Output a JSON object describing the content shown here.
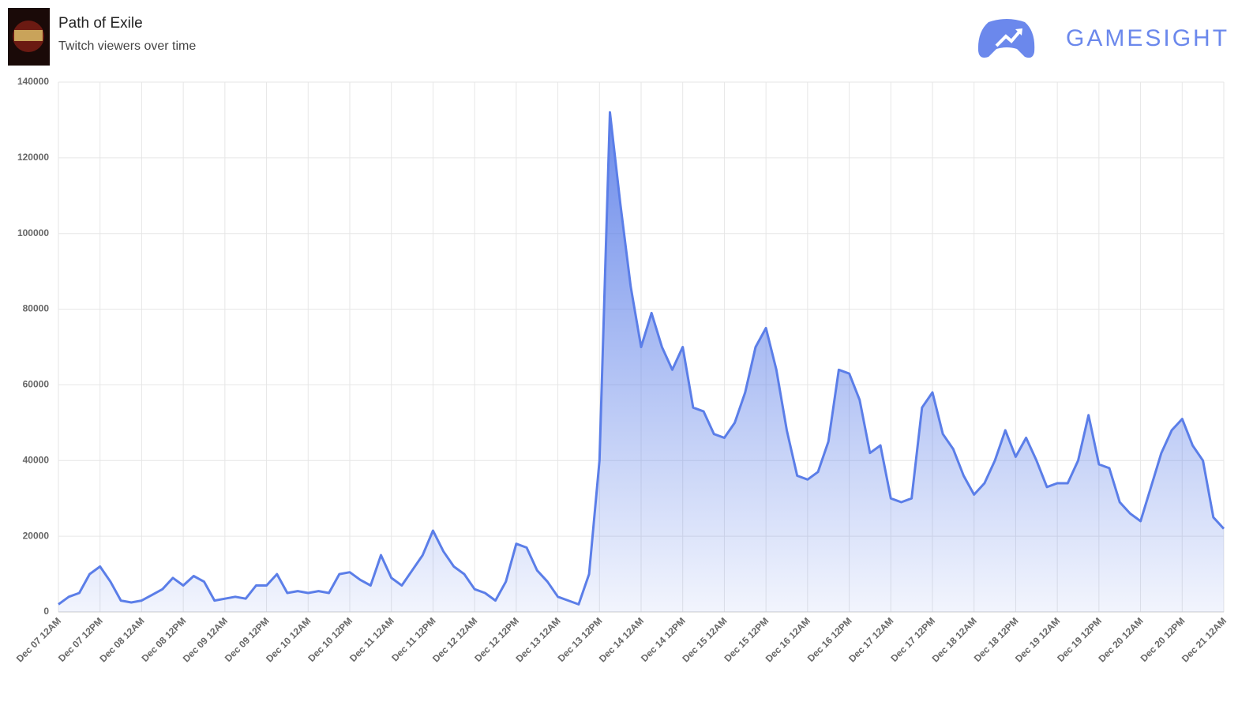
{
  "brand": "GAMESIGHT",
  "chart_data": {
    "type": "area",
    "title": "Path of Exile",
    "subtitle": "Twitch viewers over time",
    "categories": [
      "Dec 07 12AM",
      null,
      null,
      null,
      "Dec 07 12PM",
      null,
      null,
      null,
      "Dec 08 12AM",
      null,
      null,
      null,
      "Dec 08 12PM",
      null,
      null,
      null,
      "Dec 09 12AM",
      null,
      null,
      null,
      "Dec 09 12PM",
      null,
      null,
      null,
      "Dec 10 12AM",
      null,
      null,
      null,
      "Dec 10 12PM",
      null,
      null,
      null,
      "Dec 11 12AM",
      null,
      null,
      null,
      "Dec 11 12PM",
      null,
      null,
      null,
      "Dec 12 12AM",
      null,
      null,
      null,
      "Dec 12 12PM",
      null,
      null,
      null,
      "Dec 13 12AM",
      null,
      null,
      null,
      "Dec 13 12PM",
      null,
      null,
      null,
      "Dec 14 12AM",
      null,
      null,
      null,
      "Dec 14 12PM",
      null,
      null,
      null,
      "Dec 15 12AM",
      null,
      null,
      null,
      "Dec 15 12PM",
      null,
      null,
      null,
      "Dec 16 12AM",
      null,
      null,
      null,
      "Dec 16 12PM",
      null,
      null,
      null,
      "Dec 17 12AM",
      null,
      null,
      null,
      "Dec 17 12PM",
      null,
      null,
      null,
      "Dec 18 12AM",
      null,
      null,
      null,
      "Dec 18 12PM",
      null,
      null,
      null,
      "Dec 19 12AM",
      null,
      null,
      null,
      "Dec 19 12PM",
      null,
      null,
      null,
      "Dec 20 12AM",
      null,
      null,
      null,
      "Dec 20 12PM",
      null,
      null,
      null,
      "Dec 21 12AM"
    ],
    "values": [
      2000,
      4000,
      5000,
      10000,
      12000,
      8000,
      3000,
      2500,
      3000,
      4500,
      6000,
      9000,
      7000,
      9500,
      8000,
      3000,
      3500,
      4000,
      3500,
      7000,
      7000,
      10000,
      5000,
      5500,
      5000,
      5500,
      5000,
      10000,
      10500,
      8500,
      7000,
      15000,
      9000,
      7000,
      11000,
      15000,
      21500,
      16000,
      12000,
      10000,
      6000,
      5000,
      3000,
      8000,
      18000,
      17000,
      11000,
      8000,
      4000,
      3000,
      2000,
      10000,
      40000,
      132000,
      108000,
      86000,
      70000,
      79000,
      70000,
      64000,
      70000,
      54000,
      53000,
      47000,
      46000,
      50000,
      58000,
      70000,
      75000,
      64000,
      48000,
      36000,
      35000,
      37000,
      45000,
      64000,
      63000,
      56000,
      42000,
      44000,
      30000,
      29000,
      30000,
      54000,
      58000,
      47000,
      43000,
      36000,
      31000,
      34000,
      40000,
      48000,
      41000,
      46000,
      40000,
      33000,
      34000,
      34000,
      40000,
      52000,
      39000,
      38000,
      29000,
      26000,
      24000,
      33000,
      42000,
      48000,
      51000,
      44000,
      40000,
      25000,
      22000
    ],
    "color": "#5b7ee8",
    "ylim": [
      0,
      140000
    ],
    "yticks": [
      0,
      20000,
      40000,
      60000,
      80000,
      100000,
      120000,
      140000
    ],
    "grid": true
  }
}
